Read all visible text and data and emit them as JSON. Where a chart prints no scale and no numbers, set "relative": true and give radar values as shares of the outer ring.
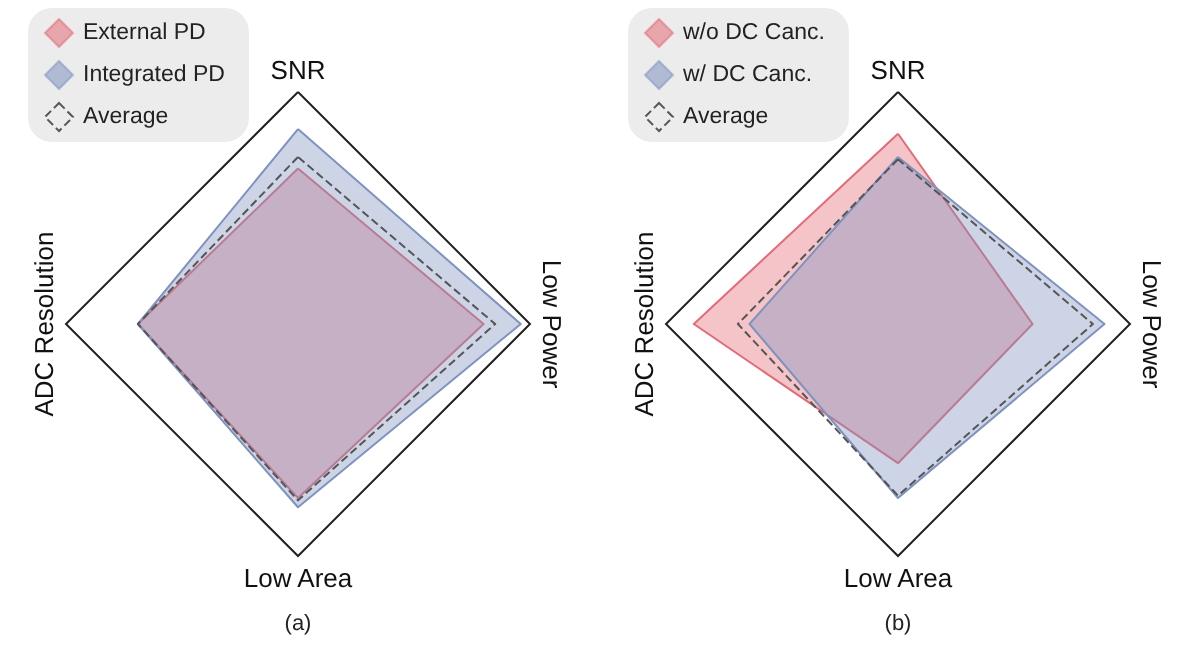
{
  "chart_data": [
    {
      "type": "radar",
      "relative": true,
      "categories": [
        "SNR",
        "Low Power",
        "Low Area",
        "ADC Resolution"
      ],
      "legend": "top left",
      "marker": "none",
      "annotations": [
        "(a)"
      ],
      "series": [
        {
          "name": "External PD",
          "color": "#e36b78",
          "values": [
            0.67,
            0.8,
            0.75,
            0.69
          ]
        },
        {
          "name": "Integrated PD",
          "color": "#7f93c0",
          "values": [
            0.84,
            0.96,
            0.79,
            0.69
          ]
        },
        {
          "name": "Average",
          "color": "#555555",
          "line_style": "dashed",
          "values": [
            0.72,
            0.85,
            0.76,
            0.69
          ]
        }
      ]
    },
    {
      "type": "radar",
      "relative": true,
      "categories": [
        "SNR",
        "Low Power",
        "Low Area",
        "ADC Resolution"
      ],
      "legend": "top left",
      "marker": "none",
      "annotations": [
        "(b)"
      ],
      "series": [
        {
          "name": "w/o DC Canc.",
          "color": "#e36b78",
          "values": [
            0.82,
            0.58,
            0.6,
            0.88
          ]
        },
        {
          "name": "w/ DC Canc.",
          "color": "#7f93c0",
          "values": [
            0.72,
            0.89,
            0.75,
            0.64
          ]
        },
        {
          "name": "Average",
          "color": "#555555",
          "line_style": "dashed",
          "values": [
            0.71,
            0.84,
            0.74,
            0.69
          ]
        }
      ]
    }
  ]
}
